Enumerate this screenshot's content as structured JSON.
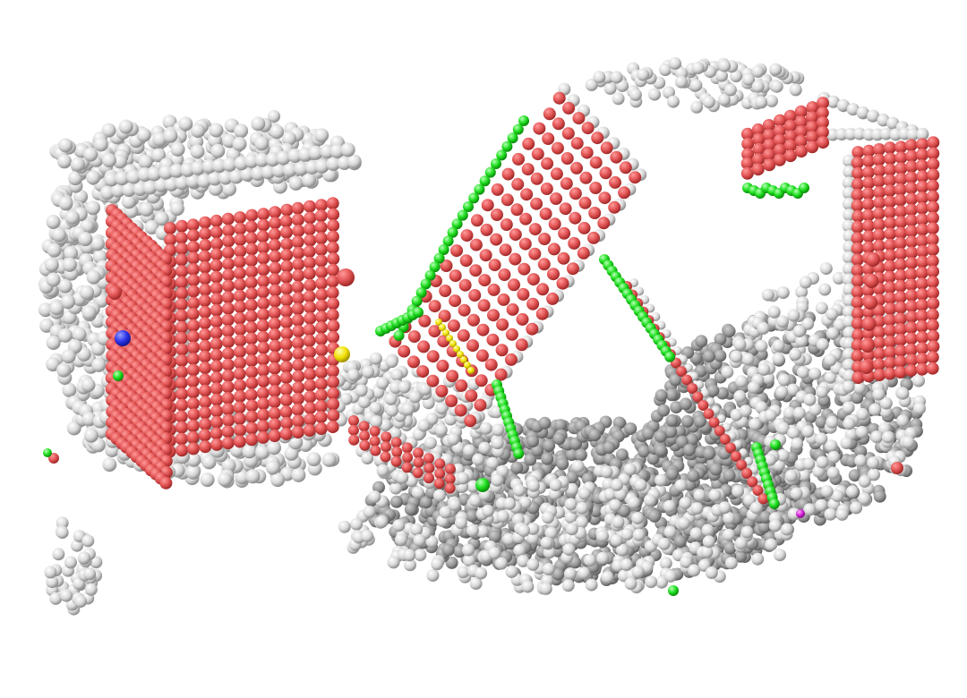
{
  "scene": {
    "description_visible_text": "",
    "background_color": "#ffffff",
    "palette": {
      "oxygen_red": "#e85a5a",
      "oxygen_red_dark": "#b83232",
      "surface_white": "#e6e6e6",
      "surface_gray": "#9a9a9a",
      "bond_green": "#1ee61e",
      "blue_atom": "#2a32e8",
      "yellow_atom": "#f0e000",
      "magenta_atom": "#d21ed2"
    },
    "objects": [
      {
        "name": "left-block",
        "kind": "red-atom-lattice-block"
      },
      {
        "name": "center-panel",
        "kind": "tilted-red-lattice-sheet"
      },
      {
        "name": "right-frame",
        "kind": "red-lattice-wall"
      },
      {
        "name": "debris-field",
        "kind": "gray-atom-cluster"
      }
    ]
  }
}
